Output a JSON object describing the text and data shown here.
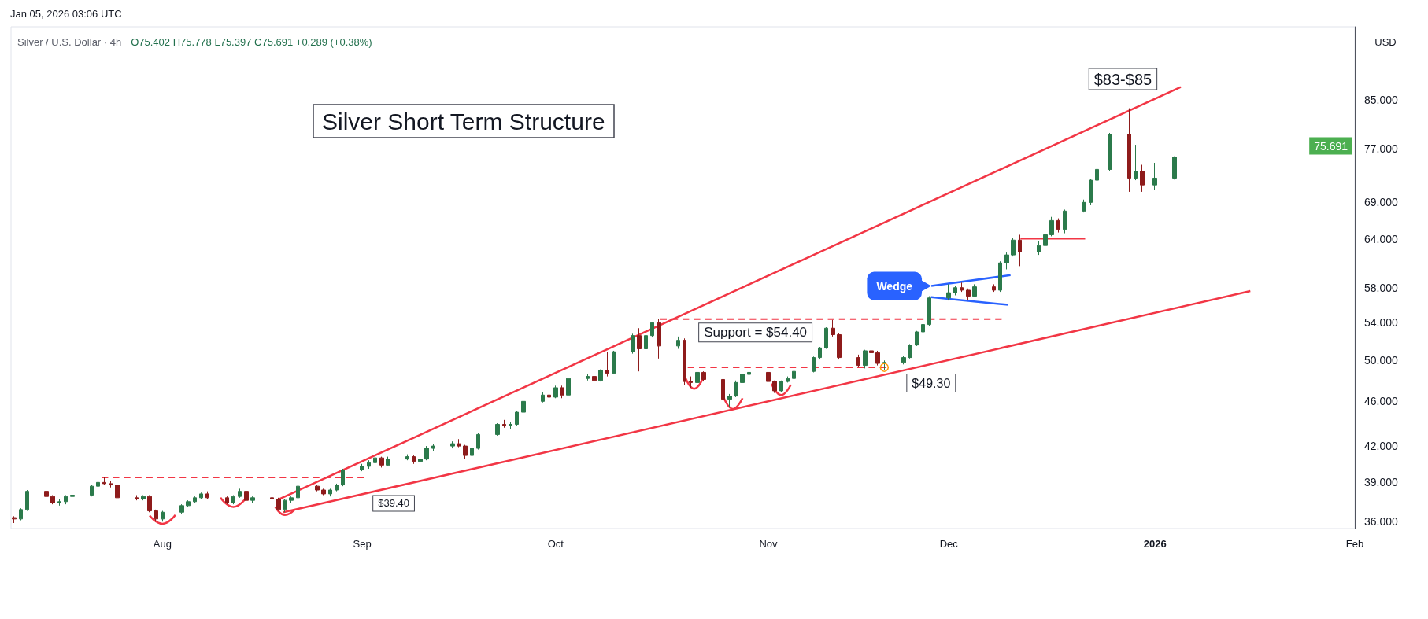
{
  "chart_data": {
    "type": "candlestick",
    "title": "Silver Short Term Structure",
    "subtitle": "Silver / U.S. Dollar · 4h",
    "ylabel": "USD",
    "annotations": [
      "Jan 05, 2026 03:06 UTC",
      "O75.402 H75.778 L75.397 C75.691 +0.289 (+0.38%)",
      {
        "text": "$39.40",
        "x": "2025-09-01",
        "y": 39.4
      },
      {
        "text": "Support = $54.40",
        "x": "2025-11-01",
        "y": 54.4
      },
      {
        "text": "$49.30",
        "x": "2025-11-21",
        "y": 49.3
      },
      {
        "text": "Wedge",
        "x": "2025-11-28T07:00",
        "y": 58.2
      },
      {
        "text": "$83-$85",
        "x": "2025-12-29",
        "y": 83.6
      }
    ],
    "x": [
      "2025-07-09",
      "2025-07-10",
      "2025-07-11",
      "2025-07-14",
      "2025-07-15",
      "2025-07-16",
      "2025-07-17",
      "2025-07-18",
      "2025-07-21",
      "2025-07-22",
      "2025-07-23",
      "2025-07-24",
      "2025-07-25",
      "2025-07-28",
      "2025-07-29",
      "2025-07-30",
      "2025-07-31",
      "2025-08-01",
      "2025-08-04",
      "2025-08-05",
      "2025-08-06",
      "2025-08-07",
      "2025-08-08",
      "2025-08-11",
      "2025-08-12",
      "2025-08-13",
      "2025-08-14",
      "2025-08-15",
      "2025-08-18",
      "2025-08-19",
      "2025-08-20",
      "2025-08-21",
      "2025-08-22",
      "2025-08-25",
      "2025-08-26",
      "2025-08-27",
      "2025-08-28",
      "2025-08-29",
      "2025-09-01",
      "2025-09-02",
      "2025-09-03",
      "2025-09-04",
      "2025-09-05",
      "2025-09-08",
      "2025-09-09",
      "2025-09-10",
      "2025-09-11",
      "2025-09-12",
      "2025-09-15",
      "2025-09-16",
      "2025-09-17",
      "2025-09-18",
      "2025-09-19",
      "2025-09-22",
      "2025-09-23",
      "2025-09-24",
      "2025-09-25",
      "2025-09-26",
      "2025-09-29",
      "2025-09-30",
      "2025-10-01",
      "2025-10-02",
      "2025-10-03",
      "2025-10-06",
      "2025-10-07",
      "2025-10-08",
      "2025-10-09",
      "2025-10-10",
      "2025-10-13",
      "2025-10-14",
      "2025-10-15",
      "2025-10-16",
      "2025-10-17",
      "2025-10-20",
      "2025-10-21",
      "2025-10-22",
      "2025-10-23",
      "2025-10-24",
      "2025-10-27",
      "2025-10-28",
      "2025-10-29",
      "2025-10-30",
      "2025-10-31",
      "2025-11-03",
      "2025-11-04",
      "2025-11-05",
      "2025-11-06",
      "2025-11-07",
      "2025-11-10",
      "2025-11-11",
      "2025-11-12",
      "2025-11-13",
      "2025-11-14",
      "2025-11-17",
      "2025-11-18",
      "2025-11-19",
      "2025-11-20",
      "2025-11-21",
      "2025-11-24",
      "2025-11-25",
      "2025-11-26",
      "2025-11-27",
      "2025-11-28",
      "2025-12-01",
      "2025-12-02",
      "2025-12-03",
      "2025-12-04",
      "2025-12-05",
      "2025-12-08",
      "2025-12-09",
      "2025-12-10",
      "2025-12-11",
      "2025-12-12",
      "2025-12-15",
      "2025-12-16",
      "2025-12-17",
      "2025-12-18",
      "2025-12-19",
      "2025-12-22",
      "2025-12-23",
      "2025-12-24",
      "2025-12-26",
      "2025-12-29",
      "2025-12-30",
      "2025-12-31",
      "2026-01-02",
      "2026-01-05"
    ],
    "ohlc": [
      [
        36.3,
        36.4,
        35.9,
        36.2
      ],
      [
        36.2,
        37.0,
        36.1,
        36.9
      ],
      [
        36.9,
        38.4,
        36.8,
        38.3
      ],
      [
        38.3,
        38.9,
        37.8,
        37.9
      ],
      [
        37.9,
        38.0,
        37.3,
        37.4
      ],
      [
        37.4,
        37.7,
        37.2,
        37.5
      ],
      [
        37.5,
        38.0,
        37.3,
        37.9
      ],
      [
        37.9,
        38.2,
        37.7,
        38.0
      ],
      [
        38.0,
        38.8,
        37.9,
        38.7
      ],
      [
        38.7,
        39.2,
        38.6,
        39.0
      ],
      [
        39.0,
        39.4,
        38.8,
        38.9
      ],
      [
        38.9,
        39.1,
        38.6,
        38.8
      ],
      [
        38.8,
        38.9,
        37.7,
        37.8
      ],
      [
        37.8,
        38.0,
        37.6,
        37.7
      ],
      [
        37.7,
        38.0,
        37.6,
        37.9
      ],
      [
        37.9,
        38.0,
        36.7,
        36.8
      ],
      [
        36.8,
        36.9,
        36.0,
        36.2
      ],
      [
        36.2,
        36.8,
        36.0,
        36.7
      ],
      [
        36.7,
        37.3,
        36.6,
        37.2
      ],
      [
        37.2,
        37.6,
        37.1,
        37.5
      ],
      [
        37.5,
        37.9,
        37.4,
        37.8
      ],
      [
        37.8,
        38.2,
        37.7,
        38.1
      ],
      [
        38.1,
        38.3,
        37.7,
        37.8
      ],
      [
        37.8,
        37.9,
        37.3,
        37.4
      ],
      [
        37.4,
        38.0,
        37.3,
        37.9
      ],
      [
        37.9,
        38.5,
        37.8,
        38.3
      ],
      [
        38.3,
        38.4,
        37.5,
        37.6
      ],
      [
        37.6,
        37.9,
        37.4,
        37.8
      ],
      [
        37.8,
        38.0,
        37.6,
        37.7
      ],
      [
        37.7,
        37.8,
        36.8,
        36.9
      ],
      [
        36.9,
        37.7,
        36.7,
        37.6
      ],
      [
        37.6,
        37.9,
        37.4,
        37.8
      ],
      [
        37.8,
        38.9,
        37.5,
        38.7
      ],
      [
        38.7,
        38.8,
        38.3,
        38.4
      ],
      [
        38.4,
        38.5,
        38.0,
        38.1
      ],
      [
        38.1,
        38.5,
        37.9,
        38.4
      ],
      [
        38.4,
        38.9,
        38.3,
        38.8
      ],
      [
        38.8,
        40.1,
        38.7,
        40.0
      ],
      [
        40.0,
        40.5,
        39.9,
        40.3
      ],
      [
        40.3,
        40.8,
        40.1,
        40.6
      ],
      [
        40.6,
        41.2,
        40.5,
        41.0
      ],
      [
        41.0,
        41.1,
        40.2,
        40.4
      ],
      [
        40.4,
        41.1,
        40.3,
        40.9
      ],
      [
        40.9,
        41.3,
        40.8,
        41.1
      ],
      [
        41.1,
        41.2,
        40.5,
        40.7
      ],
      [
        40.7,
        41.0,
        40.5,
        40.9
      ],
      [
        40.9,
        42.0,
        40.8,
        41.8
      ],
      [
        41.8,
        42.2,
        41.6,
        42.0
      ],
      [
        42.0,
        42.4,
        41.8,
        42.2
      ],
      [
        42.2,
        42.6,
        41.9,
        42.0
      ],
      [
        42.0,
        42.1,
        40.9,
        41.2
      ],
      [
        41.2,
        41.9,
        41.0,
        41.8
      ],
      [
        41.8,
        43.1,
        41.7,
        43.0
      ],
      [
        43.0,
        44.0,
        42.9,
        43.9
      ],
      [
        43.9,
        44.3,
        43.6,
        43.8
      ],
      [
        43.8,
        44.1,
        43.5,
        43.9
      ],
      [
        43.9,
        45.1,
        43.8,
        45.0
      ],
      [
        45.0,
        46.2,
        44.9,
        46.0
      ],
      [
        46.0,
        46.9,
        45.9,
        46.6
      ],
      [
        46.6,
        46.8,
        45.6,
        46.4
      ],
      [
        46.4,
        47.5,
        46.3,
        47.3
      ],
      [
        47.3,
        47.5,
        46.3,
        46.6
      ],
      [
        46.6,
        48.3,
        46.5,
        48.2
      ],
      [
        48.2,
        48.6,
        48.0,
        48.4
      ],
      [
        48.4,
        48.6,
        47.1,
        48.0
      ],
      [
        48.0,
        49.1,
        47.9,
        49.0
      ],
      [
        49.0,
        50.9,
        48.4,
        48.7
      ],
      [
        48.7,
        51.0,
        48.6,
        50.9
      ],
      [
        50.9,
        52.8,
        50.7,
        52.6
      ],
      [
        52.6,
        53.4,
        48.9,
        51.2
      ],
      [
        51.2,
        52.8,
        51.0,
        52.6
      ],
      [
        52.6,
        54.1,
        52.4,
        54.0
      ],
      [
        54.0,
        54.4,
        50.2,
        51.5
      ],
      [
        51.5,
        52.5,
        51.2,
        52.1
      ],
      [
        52.1,
        52.3,
        47.6,
        47.9
      ],
      [
        47.9,
        48.4,
        47.3,
        47.8
      ],
      [
        47.8,
        49.0,
        47.6,
        48.8
      ],
      [
        48.8,
        48.9,
        47.9,
        48.1
      ],
      [
        48.1,
        48.2,
        46.0,
        46.2
      ],
      [
        46.2,
        46.7,
        45.5,
        46.5
      ],
      [
        46.5,
        48.0,
        46.4,
        47.8
      ],
      [
        47.8,
        48.7,
        47.3,
        48.6
      ],
      [
        48.6,
        49.0,
        48.3,
        48.8
      ],
      [
        48.8,
        48.9,
        47.6,
        47.9
      ],
      [
        47.9,
        48.0,
        46.8,
        47.0
      ],
      [
        47.0,
        48.0,
        46.9,
        47.9
      ],
      [
        47.9,
        48.4,
        47.8,
        48.2
      ],
      [
        48.2,
        49.0,
        48.0,
        48.9
      ],
      [
        48.9,
        50.4,
        48.8,
        50.3
      ],
      [
        50.3,
        51.4,
        50.1,
        51.3
      ],
      [
        51.3,
        53.5,
        51.2,
        53.4
      ],
      [
        53.4,
        54.3,
        52.5,
        52.7
      ],
      [
        52.7,
        52.9,
        50.1,
        50.3
      ],
      [
        50.3,
        50.6,
        49.3,
        49.5
      ],
      [
        49.5,
        51.1,
        49.2,
        51.0
      ],
      [
        51.0,
        52.0,
        50.6,
        50.8
      ],
      [
        50.8,
        51.0,
        49.5,
        49.7
      ],
      [
        49.7,
        50.0,
        49.0,
        49.8
      ],
      [
        49.8,
        50.5,
        49.6,
        50.3
      ],
      [
        50.3,
        51.7,
        50.2,
        51.6
      ],
      [
        51.6,
        53.1,
        51.5,
        53.0
      ],
      [
        53.0,
        53.9,
        52.8,
        53.8
      ],
      [
        53.8,
        57.0,
        53.6,
        56.8
      ],
      [
        56.8,
        58.4,
        56.5,
        57.4
      ],
      [
        57.4,
        58.2,
        57.1,
        58.0
      ],
      [
        58.0,
        58.6,
        57.5,
        57.7
      ],
      [
        57.7,
        57.9,
        56.5,
        57.0
      ],
      [
        57.0,
        58.4,
        56.9,
        58.1
      ],
      [
        58.1,
        58.4,
        57.5,
        57.7
      ],
      [
        57.7,
        61.2,
        57.5,
        61.0
      ],
      [
        61.0,
        62.3,
        60.2,
        62.0
      ],
      [
        62.0,
        64.2,
        61.8,
        63.9
      ],
      [
        63.9,
        64.6,
        60.6,
        62.4
      ],
      [
        62.4,
        63.8,
        62.0,
        63.2
      ],
      [
        63.2,
        64.8,
        62.5,
        64.6
      ],
      [
        64.6,
        67.0,
        64.4,
        66.5
      ],
      [
        66.5,
        66.8,
        64.9,
        65.3
      ],
      [
        65.3,
        68.0,
        64.8,
        67.8
      ],
      [
        67.8,
        69.4,
        67.6,
        69.0
      ],
      [
        69.0,
        72.4,
        68.6,
        72.2
      ],
      [
        72.2,
        74.0,
        71.2,
        73.8
      ],
      [
        73.8,
        79.5,
        73.5,
        79.3
      ],
      [
        79.3,
        83.6,
        70.5,
        72.5
      ],
      [
        72.5,
        77.6,
        72.2,
        73.5
      ],
      [
        73.5,
        74.5,
        70.5,
        71.5
      ],
      [
        71.5,
        74.8,
        70.8,
        72.5
      ],
      [
        72.5,
        75.8,
        72.3,
        75.7
      ]
    ],
    "series": [
      {
        "type": "line",
        "color": "#f23645",
        "x": [
          "2025-08-19T04:00",
          "2026-01-06"
        ],
        "values": [
          37.7,
          87.3
        ]
      },
      {
        "type": "line",
        "color": "#f23645",
        "x": [
          "2025-08-19T18:00",
          "2026-01-16T19:00"
        ],
        "values": [
          36.7,
          57.6
        ]
      },
      {
        "type": "line",
        "color": "#f23645",
        "line_style": "dashed",
        "x": [
          "2025-07-22T14:00",
          "2025-09-01T06:00"
        ],
        "values": [
          39.4,
          39.4
        ]
      },
      {
        "type": "line",
        "color": "#f23645",
        "line_style": "dashed",
        "x": [
          "2025-10-17T06:00",
          "2025-12-09T05:00"
        ],
        "values": [
          54.4,
          54.4
        ]
      },
      {
        "type": "line",
        "color": "#f23645",
        "line_style": "dashed",
        "x": [
          "2025-10-21T12:00",
          "2025-11-21T08:00"
        ],
        "values": [
          49.3,
          49.3
        ]
      },
      {
        "type": "line",
        "color": "#f23645",
        "x": [
          "2025-12-12T03:00",
          "2025-12-22T04:00"
        ],
        "values": [
          64.1,
          64.1
        ]
      },
      {
        "type": "line",
        "color": "#2962ff",
        "x": [
          "2025-11-28T07:00",
          "2025-12-10T14:00"
        ],
        "values": [
          58.2,
          59.5
        ]
      },
      {
        "type": "line",
        "color": "#2962ff",
        "x": [
          "2025-11-28T06:00",
          "2025-12-10T06:00"
        ],
        "values": [
          56.9,
          56.0
        ]
      },
      {
        "type": "line",
        "color": "#f23645",
        "x": [
          "2025-07-30",
          "2025-08-01",
          "2025-08-03"
        ],
        "values": [
          36.45,
          35.85,
          36.5
        ]
      },
      {
        "type": "line",
        "color": "#f23645",
        "x": [
          "2025-08-10",
          "2025-08-12",
          "2025-08-14"
        ],
        "values": [
          37.8,
          37.1,
          37.8
        ]
      },
      {
        "type": "line",
        "color": "#f23645",
        "x": [
          "2025-08-18T12:00",
          "2025-08-20",
          "2025-08-21T12:00"
        ],
        "values": [
          37.1,
          36.5,
          36.9
        ]
      },
      {
        "type": "line",
        "color": "#f23645",
        "x": [
          "2025-10-21",
          "2025-10-22T12:00",
          "2025-10-24"
        ],
        "values": [
          48.5,
          47.2,
          48.4
        ]
      },
      {
        "type": "line",
        "color": "#f23645",
        "x": [
          "2025-10-27",
          "2025-10-28T12:00",
          "2025-10-30"
        ],
        "values": [
          46.5,
          45.3,
          46.3
        ]
      },
      {
        "type": "line",
        "color": "#f23645",
        "x": [
          "2025-11-03T12:00",
          "2025-11-05",
          "2025-11-06T12:00"
        ],
        "values": [
          47.7,
          46.6,
          47.6
        ]
      }
    ],
    "ref_lines": [
      {
        "axis": "y",
        "value": 75.691,
        "label": "75.691",
        "color": "#4caf50",
        "line_style": "dotted"
      }
    ],
    "log": true,
    "xlim": [
      "2025-07-08T12:00",
      "2026-02-02"
    ],
    "xticks": [
      {
        "value": "2025-08-01",
        "label": "Aug"
      },
      {
        "value": "2025-09-01",
        "label": "Sep"
      },
      {
        "value": "2025-10-01",
        "label": "Oct"
      },
      {
        "value": "2025-11-03",
        "label": "Nov"
      },
      {
        "value": "2025-12-01",
        "label": "Dec"
      },
      {
        "value": "2026-01-02",
        "label": "2026"
      },
      {
        "value": "2026-02-02",
        "label": "Feb"
      }
    ],
    "ylim": [
      35.5,
      98.7
    ],
    "yticks": [
      {
        "value": 36,
        "label": "36.000"
      },
      {
        "value": 39,
        "label": "39.000"
      },
      {
        "value": 42,
        "label": "42.000"
      },
      {
        "value": 46,
        "label": "46.000"
      },
      {
        "value": 50,
        "label": "50.000"
      },
      {
        "value": 54,
        "label": "54.000"
      },
      {
        "value": 58,
        "label": "58.000"
      },
      {
        "value": 64,
        "label": "64.000"
      },
      {
        "value": 69,
        "label": "69.000"
      },
      {
        "value": 77,
        "label": "77.000"
      },
      {
        "value": 85,
        "label": "85.000"
      }
    ]
  }
}
